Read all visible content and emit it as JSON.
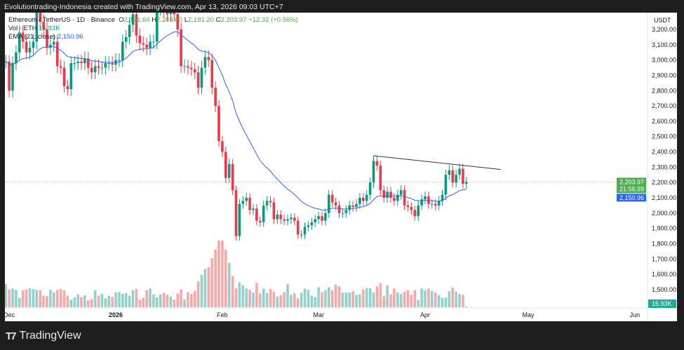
{
  "header": {
    "caption": "Evolutiontrading-Indonesia created with TradingView.com, Apr 13, 2026 09:03 UTC+7"
  },
  "legend": {
    "symbol": "Ethereum / TetherUS · 1D · Binance",
    "o_label": "O",
    "o": "2,191.64",
    "h_label": "H",
    "h": "2,209.00",
    "l_label": "L",
    "l": "2,181.20",
    "c_label": "C",
    "c": "2,203.97",
    "change": "+12.32 (+0.56%)",
    "vol_label": "Vol · ETH",
    "vol": "15.93K",
    "ema_label": "EMA (21, close)",
    "ema": "2,150.96"
  },
  "footer": {
    "brand": "TradingView"
  },
  "chart_data": {
    "type": "candlestick",
    "currency_label": "USDT",
    "start_date": "2025-11-30",
    "interval": "1D",
    "close": [
      2990,
      2800,
      2980,
      3050,
      3180,
      3120,
      3050,
      3080,
      3120,
      3320,
      3250,
      3200,
      3080,
      3100,
      3120,
      2960,
      2950,
      2830,
      2810,
      2980,
      2980,
      2990,
      2980,
      3010,
      2950,
      2920,
      2960,
      2950,
      2950,
      2980,
      2980,
      2970,
      3000,
      3000,
      3120,
      3150,
      3230,
      3300,
      3160,
      3110,
      3100,
      3080,
      3120,
      3120,
      3340,
      3340,
      3330,
      3300,
      3310,
      3300,
      3200,
      2960,
      2960,
      2950,
      2940,
      2920,
      2820,
      2950,
      3020,
      3000,
      2820,
      2700,
      2470,
      2400,
      2230,
      2320,
      2150,
      1850,
      2060,
      2080,
      2100,
      2020,
      2030,
      1950,
      1940,
      2050,
      2080,
      2070,
      1960,
      1990,
      1960,
      1950,
      1960,
      1970,
      1950,
      1860,
      1860,
      1910,
      1920,
      1940,
      1960,
      1980,
      1950,
      2000,
      2120,
      2070,
      2050,
      2000,
      2000,
      2020,
      2050,
      2040,
      2060,
      2100,
      2080,
      2120,
      2200,
      2340,
      2310,
      2150,
      2100,
      2140,
      2100,
      2080,
      2120,
      2150,
      2050,
      2040,
      2020,
      1980,
      2050,
      2090,
      2110,
      2060,
      2060,
      2050,
      2080,
      2120,
      2250,
      2280,
      2200,
      2250,
      2290,
      2191.64,
      2203.97
    ],
    "volume_k": [
      520,
      400,
      420,
      390,
      210,
      380,
      400,
      430,
      410,
      390,
      380,
      260,
      250,
      390,
      330,
      390,
      410,
      380,
      260,
      170,
      220,
      290,
      230,
      270,
      160,
      180,
      380,
      260,
      300,
      200,
      260,
      230,
      330,
      340,
      300,
      320,
      260,
      380,
      410,
      170,
      210,
      380,
      420,
      290,
      220,
      290,
      320,
      280,
      240,
      170,
      310,
      400,
      180,
      340,
      300,
      370,
      580,
      730,
      860,
      900,
      1100,
      1300,
      1500,
      1500,
      1300,
      1000,
      700,
      420,
      560,
      500,
      420,
      390,
      330,
      550,
      310,
      420,
      320,
      410,
      350,
      240,
      270,
      340,
      520,
      280,
      310,
      200,
      330,
      420,
      390,
      260,
      230,
      450,
      340,
      380,
      450,
      380,
      510,
      470,
      330,
      330,
      330,
      360,
      280,
      290,
      400,
      430,
      430,
      330,
      470,
      540,
      250,
      490,
      290,
      420,
      330,
      300,
      350,
      380,
      280,
      390,
      160,
      420,
      380,
      420,
      370,
      330,
      270,
      210,
      220,
      360,
      440,
      350,
      300,
      280,
      15.93
    ],
    "ema_period": 21,
    "current_price": 2203.97,
    "ema_value": 2150.96,
    "countdown": "21:56:39",
    "trendline": [
      [
        "2026-03-17",
        2375
      ],
      [
        "2026-04-23",
        2285
      ]
    ],
    "y_ticks": [
      "3,200.00",
      "3,100.00",
      "3,000.00",
      "2,900.00",
      "2,800.00",
      "2,700.00",
      "2,600.00",
      "2,500.00",
      "2,400.00",
      "2,300.00",
      "2,200.00",
      "2,100.00",
      "2,000.00",
      "1,900.00",
      "1,800.00",
      "1,700.00",
      "1,600.00",
      "1,500.00"
    ],
    "x_ticks": [
      "Dec",
      "2026",
      "Feb",
      "Mar",
      "Apr",
      "May",
      "Jun"
    ],
    "ylim": [
      1400,
      3300
    ],
    "colors": {
      "up": "#089981",
      "down": "#f23645",
      "ema": "#2962ff",
      "vol_up": "#92d2cc",
      "vol_down": "#f7a9a7",
      "trendline": "#333333",
      "price_label": "#4caf50",
      "vol_label": "#22ab94"
    }
  }
}
